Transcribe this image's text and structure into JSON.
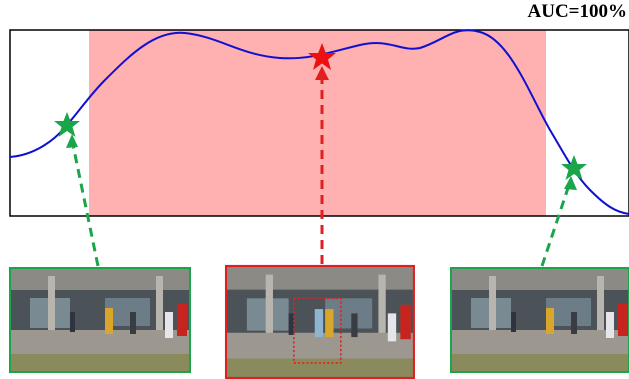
{
  "figure": {
    "label": "AUC=100%"
  }
}
